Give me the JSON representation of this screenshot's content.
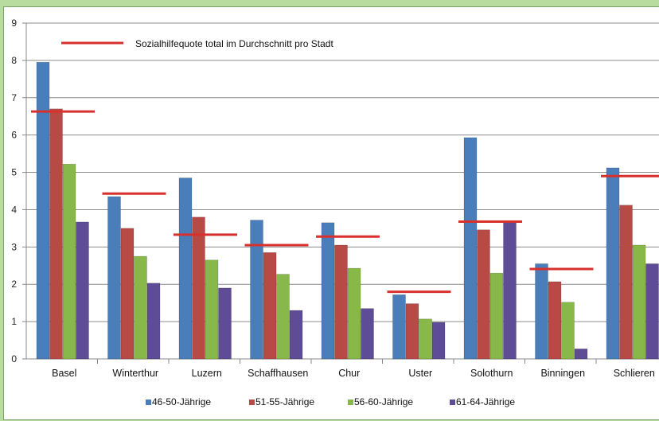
{
  "chart_data": {
    "type": "bar",
    "title": "",
    "xlabel": "",
    "ylabel": "",
    "ylim": [
      0,
      9
    ],
    "yticks": [
      0,
      1,
      2,
      3,
      4,
      5,
      6,
      7,
      8,
      9
    ],
    "grid": true,
    "legend_position": "bottom",
    "categories": [
      "Basel",
      "Winterthur",
      "Luzern",
      "Schaffhausen",
      "Chur",
      "Uster",
      "Solothurn",
      "Binningen",
      "Schlieren"
    ],
    "series": [
      {
        "name": "46-50-Jährige",
        "color": "#4a7ebb",
        "values": [
          7.95,
          4.35,
          4.85,
          3.72,
          3.65,
          1.72,
          5.93,
          2.55,
          5.12
        ]
      },
      {
        "name": "51-55-Jährige",
        "color": "#b84a46",
        "values": [
          6.7,
          3.5,
          3.8,
          2.85,
          3.05,
          1.48,
          3.46,
          2.07,
          4.12
        ]
      },
      {
        "name": "56-60-Jährige",
        "color": "#88b84a",
        "values": [
          5.22,
          2.75,
          2.65,
          2.27,
          2.43,
          1.07,
          2.3,
          1.52,
          3.05
        ]
      },
      {
        "name": "61-64-Jährige",
        "color": "#5e4c96",
        "values": [
          3.67,
          2.03,
          1.9,
          1.3,
          1.35,
          0.98,
          3.66,
          0.27,
          2.55
        ]
      }
    ],
    "average_line": {
      "name": "Sozialhilfequote total im Durchschnitt pro Stadt",
      "color": "#d8302c",
      "values": [
        6.63,
        4.43,
        3.33,
        3.05,
        3.28,
        1.8,
        3.68,
        2.41,
        4.9
      ]
    }
  }
}
